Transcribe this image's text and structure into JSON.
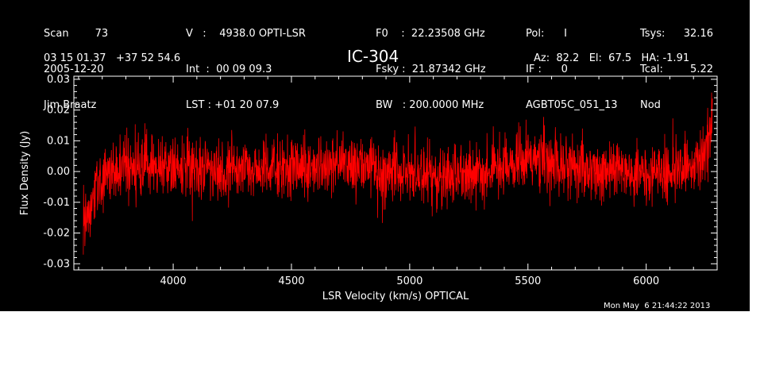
{
  "header": {
    "col1": [
      "Scan        73",
      "2005-12-20",
      "Jim Braatz"
    ],
    "col2": [
      "V   :    4938.0 OPTI-LSR",
      "Int  :  00 09 09.3",
      "LST : +01 20 07.9"
    ],
    "col3": [
      "F0    :  22.23508 GHz",
      "Fsky :  21.87342 GHz",
      "BW   : 200.0000 MHz"
    ],
    "col4": [
      "Pol:      I",
      "IF :      0",
      "AGBT05C_051_13"
    ],
    "col5": [
      "Tsys:",
      "Tcal:",
      "Nod"
    ],
    "col6": [
      "32.16",
      "5.22",
      ""
    ],
    "coords": "03 15 01.37   +37 52 54.6",
    "source": "IC-304",
    "azel": "Az:  82.2   El:  67.5   HA: -1.91"
  },
  "timestamp": "Mon May  6 21:44:22 2013",
  "chart_data": {
    "type": "line",
    "xlabel": "LSR Velocity (km/s) OPTICAL",
    "ylabel": "Flux Density (Jy)",
    "xlim": [
      3580,
      6300
    ],
    "ylim": [
      -0.032,
      0.031
    ],
    "xticks": [
      4000,
      4500,
      5000,
      5500,
      6000
    ],
    "xtick_labels": [
      "4000",
      "4500",
      "5000",
      "5500",
      "6000"
    ],
    "yticks": [
      -0.03,
      -0.02,
      -0.01,
      0.0,
      0.01,
      0.02,
      0.03
    ],
    "ytick_labels": [
      "-0.03",
      "-0.02",
      "-0.01",
      "0.00",
      "0.01",
      "0.02",
      "0.03"
    ],
    "series": [
      {
        "color": "#ff0000",
        "x": [
          3620,
          3640,
          3660,
          3680,
          3700,
          3750,
          3800,
          3900,
          4000,
          4100,
          4200,
          4300,
          4400,
          4500,
          4600,
          4700,
          4800,
          4900,
          5000,
          5100,
          5200,
          5300,
          5400,
          5500,
          5600,
          5700,
          5800,
          5900,
          6000,
          6100,
          6150,
          6200,
          6230,
          6250,
          6270,
          6280
        ],
        "y": [
          -0.018,
          -0.012,
          -0.008,
          -0.004,
          -0.002,
          0.0,
          0.002,
          0.002,
          0.001,
          0.001,
          0.0,
          0.001,
          0.002,
          0.001,
          0.002,
          0.002,
          0.001,
          0.0,
          0.0,
          -0.002,
          -0.001,
          0.0,
          0.002,
          0.003,
          0.002,
          0.001,
          0.0,
          0.0,
          -0.001,
          0.0,
          0.001,
          0.003,
          0.005,
          0.008,
          0.012,
          0.02
        ],
        "noise_rms": 0.005
      }
    ]
  }
}
